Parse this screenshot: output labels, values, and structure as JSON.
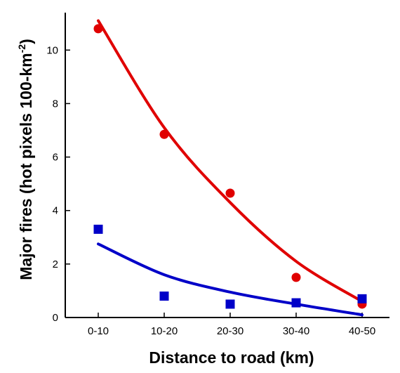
{
  "chart_data": {
    "type": "scatter",
    "title": "",
    "xlabel": "Distance to road (km)",
    "ylabel": {
      "main": "Major fires (hot pixels 100-km",
      "superscript": "-2",
      "close": ")"
    },
    "categories": [
      "0-10",
      "10-20",
      "20-30",
      "30-40",
      "40-50"
    ],
    "ylim": [
      0,
      11.4
    ],
    "yticks": [
      0,
      2,
      4,
      6,
      8,
      10
    ],
    "grid": false,
    "legend": "none",
    "series": [
      {
        "marker": "circle",
        "color": "#e00000",
        "values": [
          10.8,
          6.85,
          4.65,
          1.5,
          0.5
        ],
        "fit_curve": [
          11.1,
          7.1,
          4.3,
          2.1,
          0.6
        ]
      },
      {
        "marker": "square",
        "color": "#0000c8",
        "values": [
          3.3,
          0.8,
          0.5,
          0.55,
          0.7
        ],
        "fit_curve": [
          2.75,
          1.6,
          0.95,
          0.5,
          0.1
        ]
      }
    ]
  }
}
